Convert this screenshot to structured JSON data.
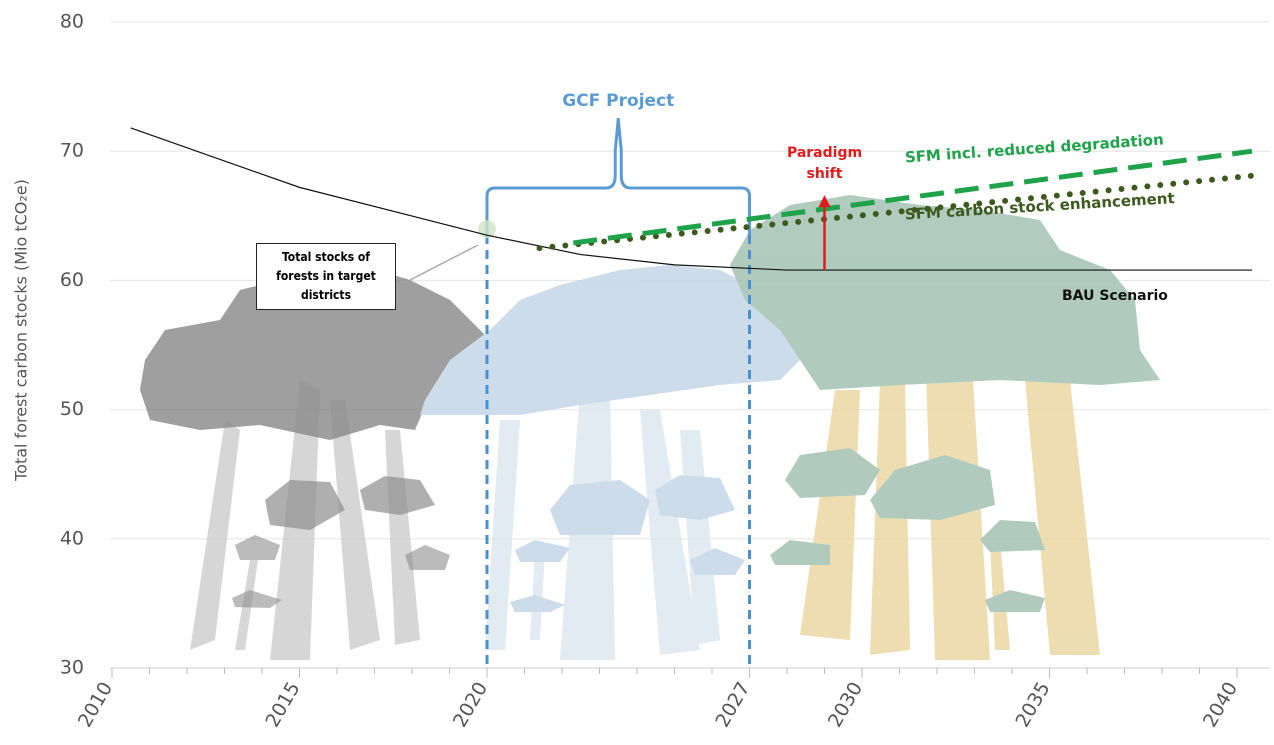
{
  "chart_data": {
    "type": "line",
    "y_label": "Total forest carbon stocks (Mio tCO₂e)",
    "xlim": [
      2010,
      2041
    ],
    "xticks": [
      2010,
      2015,
      2020,
      2027,
      2030,
      2035,
      2040
    ],
    "ylim": [
      30,
      80
    ],
    "yticks": [
      30,
      40,
      50,
      60,
      70,
      80
    ],
    "grid": true,
    "series": [
      {
        "name": "BAU Scenario",
        "color": "#111111",
        "x": [
          2010.5,
          2015,
          2020,
          2022.5,
          2025,
          2028,
          2040.4
        ],
        "values": [
          71.8,
          67.2,
          63.5,
          62.0,
          61.2,
          60.8,
          60.8
        ]
      },
      {
        "name": "SFM carbon stock enhancement",
        "color": "#3d5a1e",
        "x": [
          2021.4,
          2040.4
        ],
        "values": [
          62.5,
          68.1
        ]
      },
      {
        "name": "SFM incl. reduced degradation",
        "color": "#1fa34a",
        "x": [
          2022.3,
          2040.4
        ],
        "values": [
          62.9,
          70.0
        ]
      }
    ],
    "annotations": [
      {
        "text": "GCF Project",
        "x_range": [
          2020,
          2027
        ]
      },
      {
        "text": "Paradigm shift",
        "x": 2029,
        "from": 60.8,
        "to": 66.6
      },
      {
        "text": "Total stocks of forests in target districts"
      }
    ]
  }
}
